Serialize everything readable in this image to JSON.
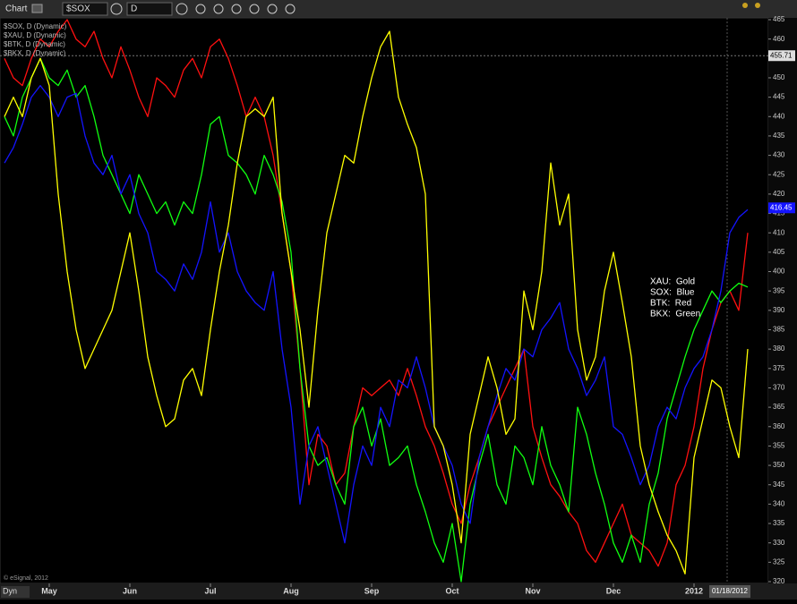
{
  "toolbar": {
    "title": "Chart",
    "symbol": "$SOX",
    "interval": "D"
  },
  "footer": {
    "copyright": "© eSignal, 2012",
    "mode": "Dyn"
  },
  "chart_data": {
    "type": "line",
    "categories": [
      null,
      null,
      null,
      null,
      null,
      "May",
      null,
      null,
      null,
      null,
      null,
      null,
      null,
      null,
      "Jun",
      null,
      null,
      null,
      null,
      null,
      null,
      null,
      null,
      "Jul",
      null,
      null,
      null,
      null,
      null,
      null,
      null,
      null,
      "Aug",
      null,
      null,
      null,
      null,
      null,
      null,
      null,
      null,
      "Sep",
      null,
      null,
      null,
      null,
      null,
      null,
      null,
      null,
      "Oct",
      null,
      null,
      null,
      null,
      null,
      null,
      null,
      null,
      "Nov",
      null,
      null,
      null,
      null,
      null,
      null,
      null,
      null,
      "Dec",
      null,
      null,
      null,
      null,
      null,
      null,
      null,
      null,
      "2012",
      null,
      null,
      null,
      null,
      null,
      null
    ],
    "series": [
      {
        "name": "$SOX, D (Dynamic)",
        "color": "#1414ff",
        "values": [
          428,
          432,
          438,
          445,
          448,
          445,
          440,
          445,
          446,
          435,
          428,
          425,
          430,
          420,
          425,
          415,
          410,
          400,
          398,
          395,
          402,
          398,
          405,
          418,
          405,
          410,
          400,
          395,
          392,
          390,
          400,
          380,
          365,
          340,
          355,
          360,
          350,
          340,
          330,
          345,
          355,
          350,
          365,
          360,
          372,
          370,
          378,
          370,
          360,
          355,
          350,
          340,
          335,
          352,
          360,
          368,
          375,
          372,
          380,
          378,
          385,
          388,
          392,
          380,
          375,
          368,
          372,
          378,
          360,
          358,
          352,
          345,
          350,
          360,
          365,
          362,
          370,
          375,
          378,
          385,
          395,
          410,
          414,
          416
        ]
      },
      {
        "name": "$XAU, D (Dynamic)",
        "color": "#ffff00",
        "values": [
          440,
          445,
          440,
          450,
          455,
          448,
          420,
          400,
          385,
          375,
          380,
          385,
          390,
          400,
          410,
          395,
          378,
          368,
          360,
          362,
          372,
          375,
          368,
          385,
          400,
          412,
          428,
          440,
          442,
          440,
          445,
          415,
          400,
          385,
          365,
          390,
          410,
          420,
          430,
          428,
          440,
          450,
          458,
          462,
          445,
          438,
          432,
          420,
          360,
          355,
          345,
          330,
          358,
          368,
          378,
          370,
          358,
          362,
          395,
          385,
          400,
          428,
          412,
          420,
          385,
          372,
          378,
          395,
          405,
          392,
          378,
          355,
          345,
          338,
          332,
          328,
          322,
          352,
          362,
          372,
          370,
          360,
          352,
          380
        ]
      },
      {
        "name": "$BTK, D (Dynamic)",
        "color": "#ff1010",
        "values": [
          455,
          450,
          448,
          455,
          460,
          458,
          462,
          465,
          460,
          458,
          462,
          455,
          450,
          458,
          452,
          445,
          440,
          450,
          448,
          445,
          452,
          455,
          450,
          458,
          460,
          455,
          448,
          440,
          445,
          440,
          430,
          415,
          400,
          375,
          345,
          358,
          355,
          345,
          348,
          360,
          370,
          368,
          370,
          372,
          368,
          375,
          368,
          360,
          355,
          348,
          340,
          335,
          345,
          352,
          360,
          365,
          370,
          375,
          380,
          360,
          352,
          345,
          342,
          338,
          335,
          328,
          325,
          330,
          335,
          340,
          332,
          330,
          328,
          324,
          330,
          345,
          350,
          360,
          375,
          385,
          392,
          395,
          390,
          410
        ]
      },
      {
        "name": "$BKX, D (Dynamic)",
        "color": "#10ff10",
        "values": [
          440,
          435,
          445,
          450,
          455,
          450,
          448,
          452,
          445,
          448,
          440,
          430,
          425,
          420,
          415,
          425,
          420,
          415,
          418,
          412,
          418,
          415,
          425,
          438,
          440,
          430,
          428,
          425,
          420,
          430,
          425,
          418,
          405,
          375,
          355,
          350,
          352,
          345,
          340,
          360,
          365,
          355,
          362,
          350,
          352,
          355,
          345,
          338,
          330,
          325,
          335,
          320,
          340,
          350,
          358,
          345,
          340,
          355,
          352,
          345,
          360,
          350,
          345,
          338,
          365,
          358,
          348,
          340,
          330,
          325,
          332,
          325,
          340,
          348,
          362,
          370,
          378,
          385,
          390,
          395,
          392,
          395,
          397,
          396
        ]
      }
    ],
    "ylim": [
      320,
      465
    ],
    "yticks": [
      320,
      325,
      330,
      335,
      340,
      345,
      350,
      355,
      360,
      365,
      370,
      375,
      380,
      385,
      390,
      395,
      400,
      405,
      410,
      415,
      420,
      425,
      430,
      435,
      440,
      445,
      450,
      455,
      460,
      465
    ],
    "reference_value": 455.71,
    "last_value": 416.45,
    "cursor_date": "01/18/2012",
    "annotations": [
      "XAU:  Gold",
      "SOX:  Blue",
      "BTK:  Red",
      "BKX:  Green"
    ]
  }
}
